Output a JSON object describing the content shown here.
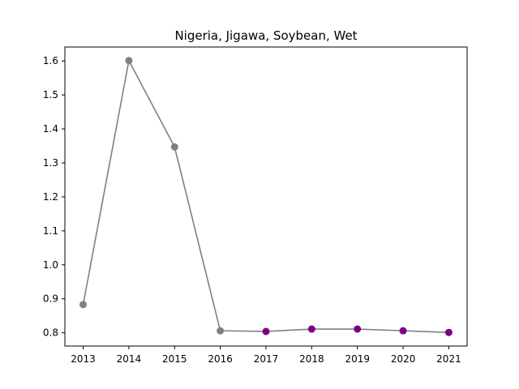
{
  "chart_data": {
    "type": "line",
    "title": "Nigeria, Jigawa, Soybean, Wet",
    "xlabel": "",
    "ylabel": "",
    "x": [
      2013,
      2014,
      2015,
      2016,
      2017,
      2018,
      2019,
      2020,
      2021
    ],
    "series": [
      {
        "values": [
          0.883,
          1.601,
          1.347,
          0.806,
          0.804,
          0.811,
          0.811,
          0.806,
          0.801
        ],
        "point_colors": [
          "#808080",
          "#808080",
          "#808080",
          "#808080",
          "#800080",
          "#800080",
          "#800080",
          "#800080",
          "#800080"
        ]
      }
    ],
    "line_color": "#808080",
    "xticks": [
      "2013",
      "2014",
      "2015",
      "2016",
      "2017",
      "2018",
      "2019",
      "2020",
      "2021"
    ],
    "yticks": [
      "0.8",
      "0.9",
      "1.0",
      "1.1",
      "1.2",
      "1.3",
      "1.4",
      "1.5",
      "1.6"
    ],
    "xlim": [
      2012.6,
      2021.4
    ],
    "ylim": [
      0.761,
      1.641
    ],
    "grid": false,
    "legend": "none"
  }
}
